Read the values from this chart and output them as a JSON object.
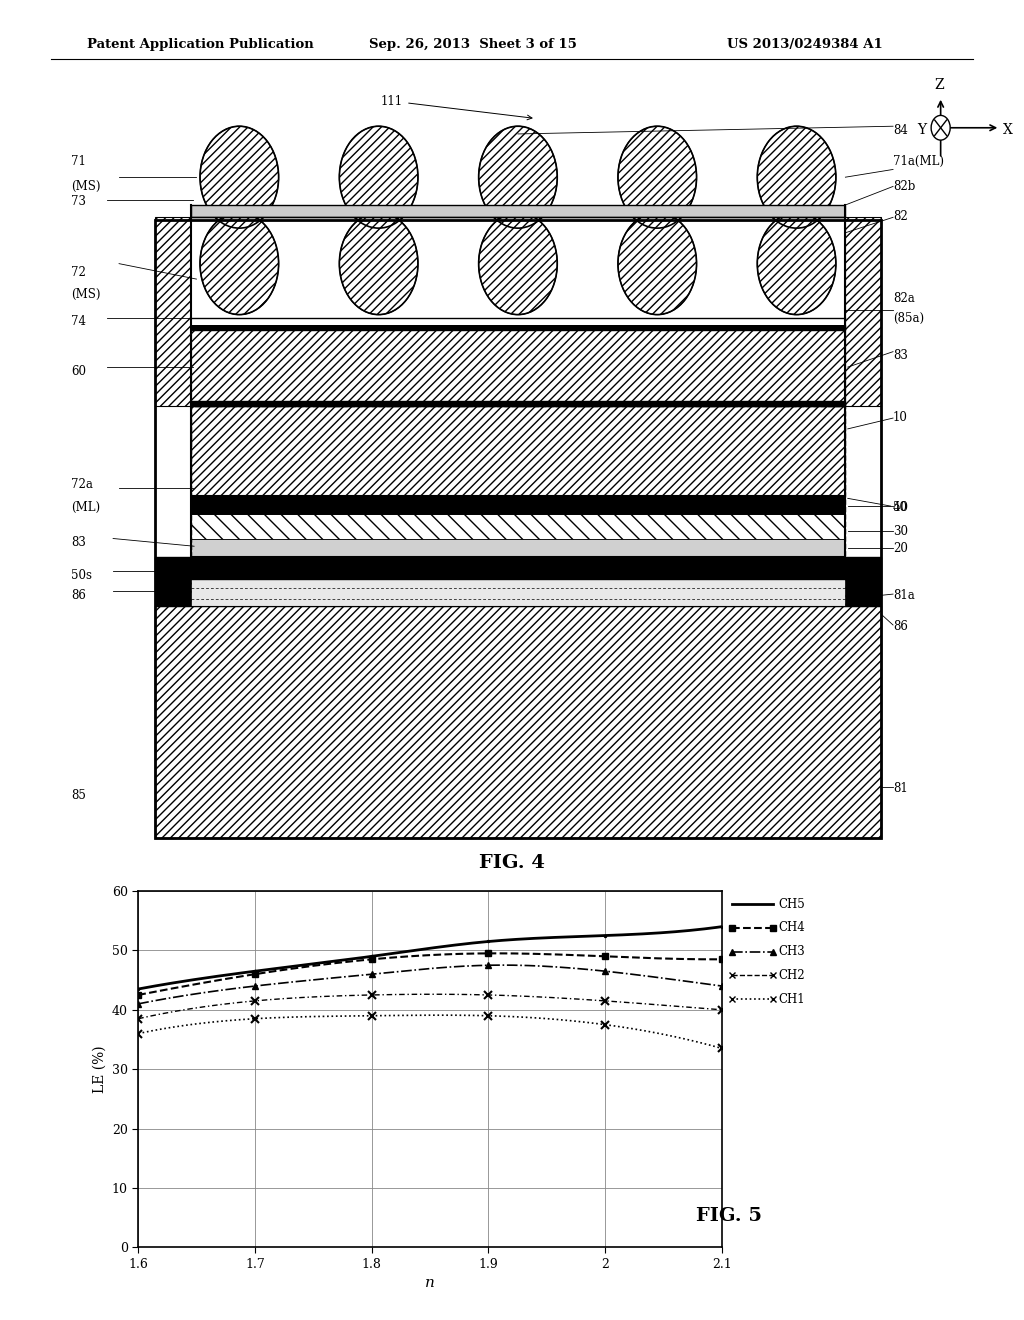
{
  "background_color": "#ffffff",
  "header_left": "Patent Application Publication",
  "header_center": "Sep. 26, 2013  Sheet 3 of 15",
  "header_right": "US 2013/0249384 A1",
  "fig4_label": "FIG. 4",
  "fig5_label": "FIG. 5",
  "graph_xlabel": "n",
  "graph_ylabel": "LE (%)",
  "graph_xlim": [
    1.6,
    2.1
  ],
  "graph_ylim": [
    0,
    60
  ],
  "graph_xticks": [
    1.6,
    1.7,
    1.8,
    1.9,
    2.0,
    2.1
  ],
  "graph_yticks": [
    0,
    10,
    20,
    30,
    40,
    50,
    60
  ],
  "ch1_x": [
    1.6,
    1.7,
    1.8,
    1.9,
    2.0,
    2.1
  ],
  "ch1_y": [
    36.0,
    38.5,
    39.0,
    39.0,
    37.5,
    33.5
  ],
  "ch2_x": [
    1.6,
    1.7,
    1.8,
    1.9,
    2.0,
    2.1
  ],
  "ch2_y": [
    38.5,
    41.5,
    42.5,
    42.5,
    41.5,
    40.0
  ],
  "ch3_x": [
    1.6,
    1.7,
    1.8,
    1.9,
    2.0,
    2.1
  ],
  "ch3_y": [
    41.0,
    44.0,
    46.0,
    47.5,
    46.5,
    44.0
  ],
  "ch4_x": [
    1.6,
    1.7,
    1.8,
    1.9,
    2.0,
    2.1
  ],
  "ch4_y": [
    42.5,
    46.0,
    48.5,
    49.5,
    49.0,
    48.5
  ],
  "ch5_x": [
    1.6,
    1.7,
    1.8,
    1.9,
    2.0,
    2.1
  ],
  "ch5_y": [
    43.5,
    46.5,
    49.0,
    51.5,
    52.5,
    54.0
  ]
}
